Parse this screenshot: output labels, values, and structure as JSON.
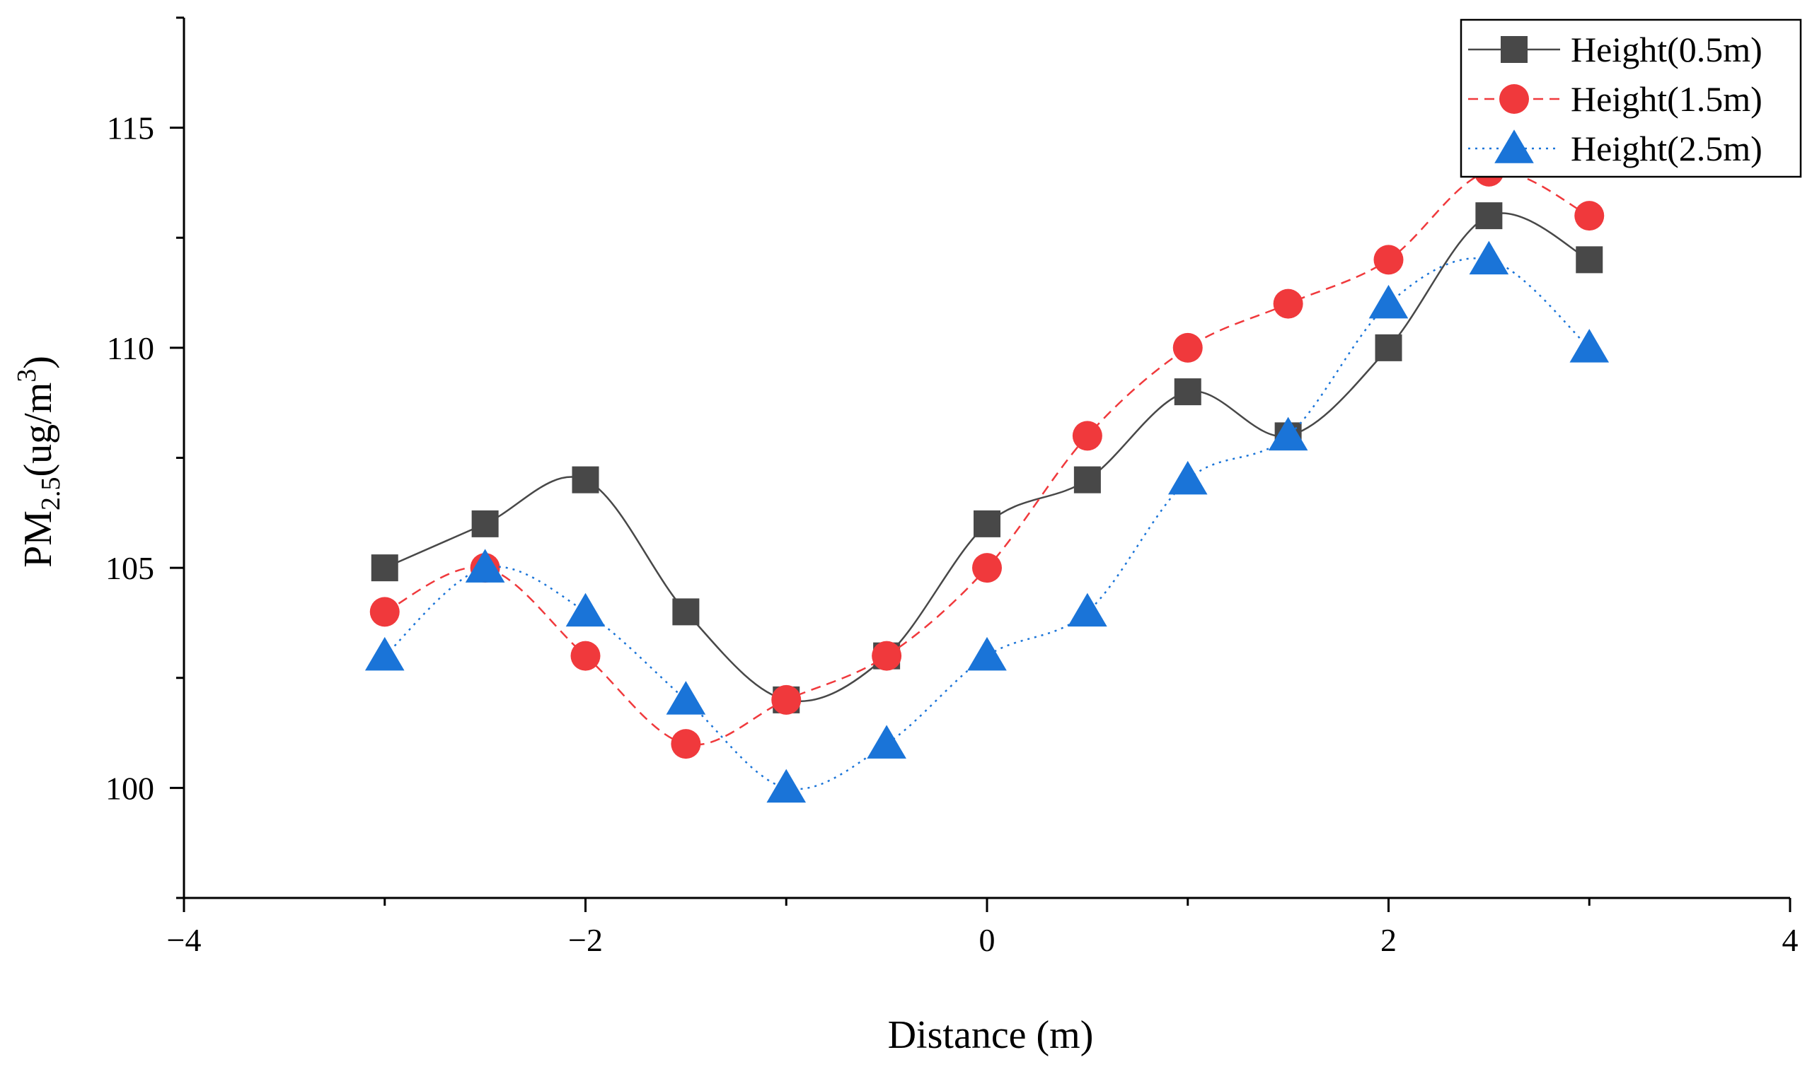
{
  "chart_data": {
    "type": "line",
    "title": "",
    "xlabel": "Distance (m)",
    "ylabel": {
      "prefix": "PM",
      "subscript": "2.5",
      "unit_open": "(ug/m",
      "superscript": "3",
      "unit_close": ")"
    },
    "xlim": [
      -4,
      4
    ],
    "ylim": [
      97.5,
      117.5
    ],
    "x_ticks": [
      -4,
      -2,
      0,
      2,
      4
    ],
    "x_tick_labels": [
      "−4",
      "−2",
      "0",
      "2",
      "4"
    ],
    "y_ticks": [
      100,
      105,
      110,
      115
    ],
    "y_tick_labels": [
      "100",
      "105",
      "110",
      "115"
    ],
    "grid": false,
    "legend_position": "top-right",
    "x": [
      -3,
      -2.5,
      -2,
      -1.5,
      -1,
      -0.5,
      0,
      0.5,
      1,
      1.5,
      2,
      2.5,
      3
    ],
    "series": [
      {
        "name": "Height(0.5m)",
        "color": "#484848",
        "marker": "square",
        "line_style": "solid",
        "values": [
          105,
          106,
          107,
          104,
          102,
          103,
          106,
          107,
          109,
          108,
          110,
          113,
          112
        ]
      },
      {
        "name": "Height(1.5m)",
        "color": "#f0393c",
        "marker": "circle",
        "line_style": "dashed",
        "values": [
          104,
          105,
          103,
          101,
          102,
          103,
          105,
          108,
          110,
          111,
          112,
          114,
          113
        ]
      },
      {
        "name": "Height(2.5m)",
        "color": "#1a74d8",
        "marker": "triangle",
        "line_style": "dotted",
        "values": [
          103,
          105,
          104,
          102,
          100,
          101,
          103,
          104,
          107,
          108,
          111,
          112,
          110
        ]
      }
    ]
  }
}
